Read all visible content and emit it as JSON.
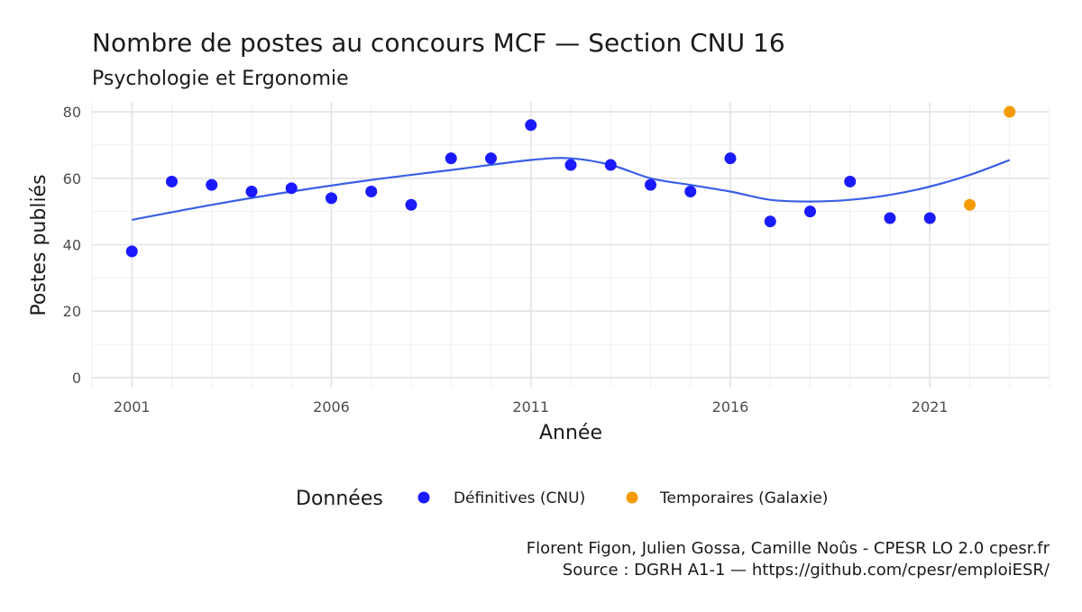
{
  "chart_data": {
    "type": "scatter",
    "title": "Nombre de postes au concours MCF  —  Section CNU 16",
    "subtitle": "Psychologie et Ergonomie",
    "xlabel": "Année",
    "ylabel": "Postes publiés",
    "xlim": [
      2000,
      2024
    ],
    "ylim": [
      -3,
      83
    ],
    "x_ticks": [
      2001,
      2006,
      2011,
      2016,
      2021
    ],
    "y_ticks": [
      0,
      20,
      40,
      60,
      80
    ],
    "grid": true,
    "legend_title": "Données",
    "legend_position": "bottom",
    "series": [
      {
        "name": "Définitives (CNU)",
        "color": "#1a1aff",
        "points": [
          {
            "x": 2001,
            "y": 38
          },
          {
            "x": 2002,
            "y": 59
          },
          {
            "x": 2003,
            "y": 58
          },
          {
            "x": 2004,
            "y": 56
          },
          {
            "x": 2005,
            "y": 57
          },
          {
            "x": 2006,
            "y": 54
          },
          {
            "x": 2007,
            "y": 56
          },
          {
            "x": 2008,
            "y": 52
          },
          {
            "x": 2009,
            "y": 66
          },
          {
            "x": 2010,
            "y": 66
          },
          {
            "x": 2011,
            "y": 76
          },
          {
            "x": 2012,
            "y": 64
          },
          {
            "x": 2013,
            "y": 64
          },
          {
            "x": 2014,
            "y": 58
          },
          {
            "x": 2015,
            "y": 56
          },
          {
            "x": 2016,
            "y": 66
          },
          {
            "x": 2017,
            "y": 47
          },
          {
            "x": 2018,
            "y": 50
          },
          {
            "x": 2019,
            "y": 59
          },
          {
            "x": 2020,
            "y": 48
          },
          {
            "x": 2021,
            "y": 48
          }
        ]
      },
      {
        "name": "Temporaires (Galaxie)",
        "color": "#f59b00",
        "points": [
          {
            "x": 2022,
            "y": 52
          },
          {
            "x": 2023,
            "y": 80
          }
        ]
      }
    ],
    "trend": {
      "color": "#3a5fe6",
      "points": [
        {
          "x": 2001,
          "y": 47.5
        },
        {
          "x": 2003,
          "y": 52.0
        },
        {
          "x": 2005,
          "y": 56.0
        },
        {
          "x": 2007,
          "y": 59.5
        },
        {
          "x": 2009,
          "y": 62.5
        },
        {
          "x": 2011,
          "y": 65.5
        },
        {
          "x": 2012,
          "y": 66.0
        },
        {
          "x": 2013,
          "y": 64.0
        },
        {
          "x": 2014,
          "y": 60.0
        },
        {
          "x": 2015,
          "y": 58.0
        },
        {
          "x": 2016,
          "y": 56.0
        },
        {
          "x": 2017,
          "y": 53.5
        },
        {
          "x": 2018,
          "y": 53.0
        },
        {
          "x": 2019,
          "y": 53.5
        },
        {
          "x": 2020,
          "y": 55.0
        },
        {
          "x": 2021,
          "y": 57.5
        },
        {
          "x": 2022,
          "y": 61.0
        },
        {
          "x": 2023,
          "y": 65.5
        }
      ]
    }
  },
  "caption": {
    "line1": "Florent Figon, Julien Gossa, Camille Noûs - CPESR LO 2.0 cpesr.fr",
    "line2": "Source : DGRH A1-1 — https://github.com/cpesr/emploiESR/"
  }
}
